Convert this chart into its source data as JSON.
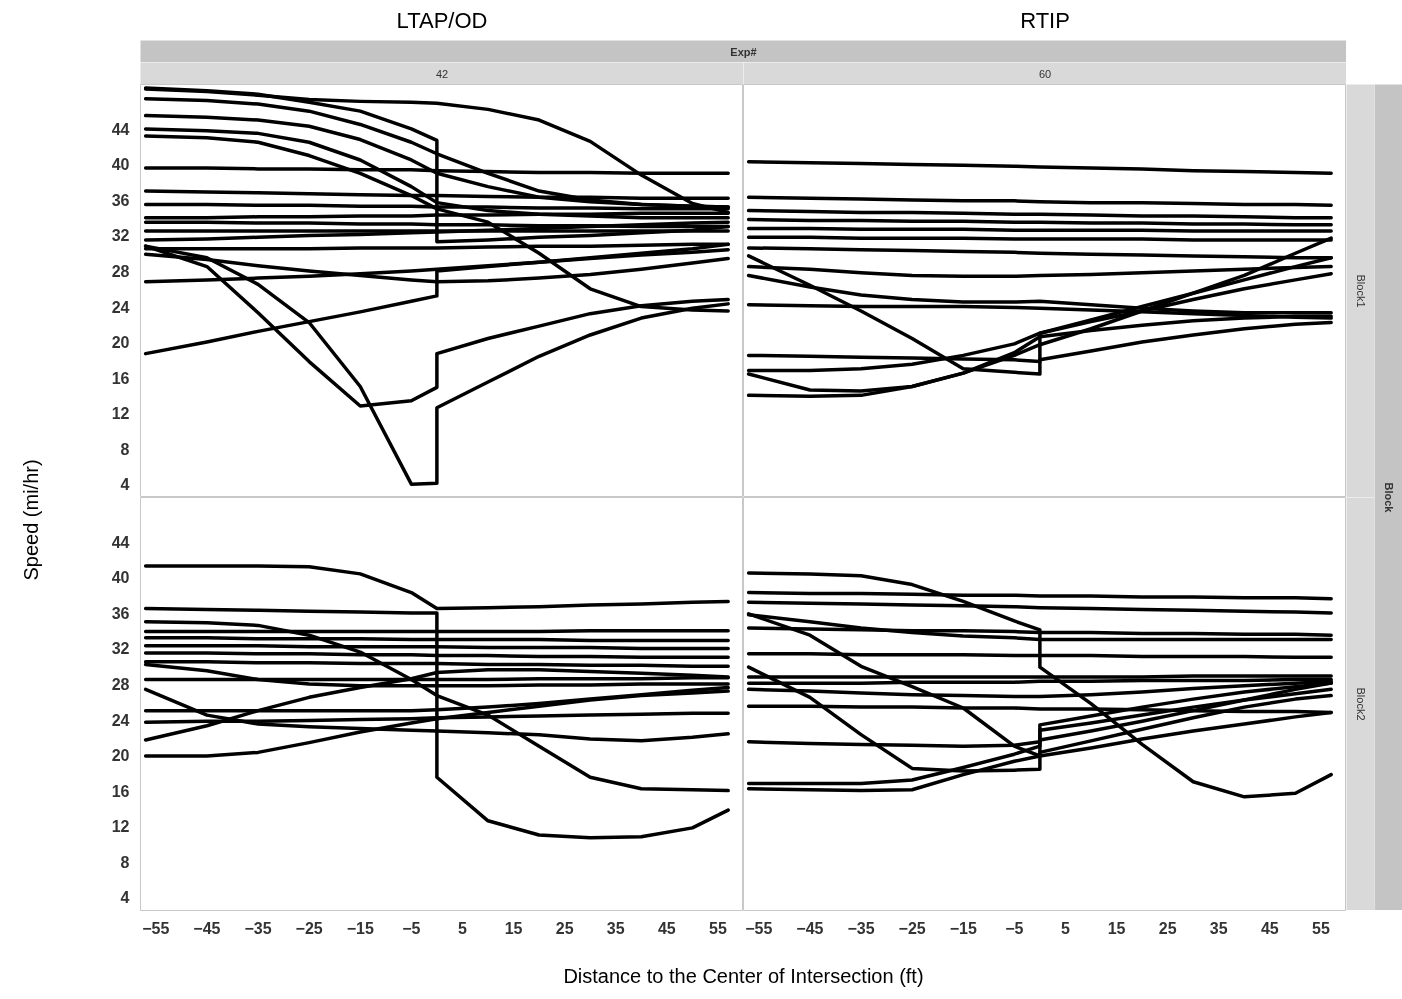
{
  "chart_data": [
    {
      "type": "line",
      "title": "LTAP/OD",
      "subtitle": "42",
      "ylabel": "Speed (mi/hr)",
      "annotations": [
        "Exp#"
      ],
      "tick_labels": "y",
      "xlim": [
        -58,
        60
      ],
      "ylim": [
        2.5,
        49
      ],
      "xticks": [
        -55,
        -45,
        -35,
        -25,
        -15,
        -5,
        5,
        15,
        25,
        35,
        45,
        55
      ],
      "yticks": [
        4,
        8,
        12,
        16,
        20,
        24,
        28,
        32,
        36,
        40,
        44
      ],
      "x": [
        -57,
        -45,
        -35,
        -25,
        -15,
        -5,
        0,
        0,
        10,
        20,
        30,
        40,
        50,
        57
      ],
      "series": [
        {
          "color": "#000000",
          "values": [
            48.5,
            48.2,
            47.8,
            47.3,
            47.1,
            47,
            46.9,
            46.9,
            46.2,
            45,
            42.6,
            38.8,
            35.6,
            34.6
          ]
        },
        {
          "color": "#000000",
          "values": [
            48.6,
            48.3,
            47.9,
            47,
            46,
            44,
            42.7,
            31.3,
            31.5,
            31.8,
            32,
            32.3,
            32.6,
            33
          ]
        },
        {
          "color": "#000000",
          "values": [
            47.4,
            47.2,
            46.8,
            46,
            44.5,
            42.5,
            41.2,
            41.2,
            39,
            37,
            36,
            35.5,
            35.3,
            35.2
          ]
        },
        {
          "color": "#000000",
          "values": [
            45.5,
            45.3,
            45,
            44.3,
            42.8,
            40.5,
            39,
            39,
            37.5,
            36.3,
            35.8,
            35.5,
            35.3,
            35.2
          ]
        },
        {
          "color": "#000000",
          "values": [
            44,
            43.8,
            43.5,
            42.5,
            40.5,
            37.5,
            35.7,
            35.7,
            34.8,
            34.4,
            34.2,
            34,
            34,
            34
          ]
        },
        {
          "color": "#000000",
          "values": [
            43.2,
            43,
            42.5,
            41,
            39,
            36.5,
            35,
            35,
            33.5,
            30,
            26,
            24,
            23.6,
            23.5
          ]
        },
        {
          "color": "#000000",
          "values": [
            39.6,
            39.6,
            39.5,
            39.5,
            39.4,
            39.4,
            39.3,
            39.3,
            39.2,
            39.1,
            39.1,
            39,
            39,
            39
          ]
        },
        {
          "color": "#000000",
          "values": [
            37,
            36.9,
            36.8,
            36.7,
            36.6,
            36.5,
            36.5,
            36.5,
            36.4,
            36.3,
            36.3,
            36.2,
            36.2,
            36.2
          ]
        },
        {
          "color": "#000000",
          "values": [
            35.5,
            35.5,
            35.4,
            35.4,
            35.3,
            35.3,
            35.2,
            35.2,
            35.2,
            35.1,
            35.1,
            35,
            35,
            35
          ]
        },
        {
          "color": "#000000",
          "values": [
            34,
            34,
            34.1,
            34.1,
            34.2,
            34.2,
            34.3,
            34.3,
            34.3,
            34.4,
            34.4,
            34.5,
            34.5,
            34.5
          ]
        },
        {
          "color": "#000000",
          "values": [
            33.5,
            33.5,
            33.4,
            33.4,
            33.3,
            33.3,
            33.2,
            33.2,
            33.2,
            33.1,
            33.1,
            33,
            33,
            33
          ]
        },
        {
          "color": "#000000",
          "values": [
            32.5,
            32.5,
            32.5,
            32.5,
            32.5,
            32.5,
            32.5,
            32.5,
            32.5,
            32.5,
            32.5,
            32.5,
            32.5,
            32.5
          ]
        },
        {
          "color": "#000000",
          "values": [
            31.5,
            31.6,
            31.8,
            32,
            32.1,
            32.3,
            32.4,
            32.4,
            32.6,
            32.8,
            33,
            33.2,
            33.4,
            33.5
          ]
        },
        {
          "color": "#000000",
          "values": [
            30.5,
            30.5,
            30.5,
            30.5,
            30.6,
            30.6,
            30.6,
            30.6,
            30.7,
            30.8,
            30.8,
            30.9,
            31,
            31
          ]
        },
        {
          "color": "#000000",
          "values": [
            29.9,
            29.3,
            28.6,
            28,
            27.5,
            27,
            26.8,
            26.8,
            26.9,
            27.2,
            27.6,
            28.2,
            28.9,
            29.4
          ]
        },
        {
          "color": "#000000",
          "values": [
            26.8,
            27,
            27.2,
            27.4,
            27.7,
            28,
            28.2,
            28.2,
            28.6,
            29,
            29.4,
            29.8,
            30.1,
            30.4
          ]
        },
        {
          "color": "#000000",
          "values": [
            18.7,
            20,
            21.2,
            22.3,
            23.4,
            24.6,
            25.2,
            28,
            28.5,
            29,
            29.5,
            30,
            30.5,
            31
          ]
        },
        {
          "color": "#000000",
          "values": [
            30.8,
            28.5,
            23.3,
            17.8,
            12.8,
            13.4,
            14.9,
            18.7,
            20.4,
            21.8,
            23.2,
            24.1,
            24.6,
            24.8
          ]
        },
        {
          "color": "#000000",
          "values": [
            30.8,
            29.5,
            26.5,
            22.2,
            15,
            4,
            4.1,
            12.6,
            15.5,
            18.4,
            20.8,
            22.7,
            23.8,
            24.3
          ]
        }
      ]
    },
    {
      "type": "line",
      "title": "RTIP",
      "subtitle": "60",
      "annotations": [
        "Block1",
        "Block"
      ],
      "tick_labels": false,
      "xlim": [
        -58,
        60
      ],
      "ylim": [
        2.5,
        49
      ],
      "xticks": [
        -55,
        -45,
        -35,
        -25,
        -15,
        -5,
        5,
        15,
        25,
        35,
        45,
        55
      ],
      "yticks": [
        4,
        8,
        12,
        16,
        20,
        24,
        28,
        32,
        36,
        40,
        44
      ],
      "x": [
        -57,
        -45,
        -35,
        -25,
        -15,
        -5,
        0,
        0,
        10,
        20,
        30,
        40,
        50,
        57
      ],
      "series": [
        {
          "color": "#000000",
          "values": [
            40.3,
            40.2,
            40.1,
            40,
            39.9,
            39.8,
            39.7,
            39.7,
            39.6,
            39.5,
            39.3,
            39.2,
            39.1,
            39
          ]
        },
        {
          "color": "#000000",
          "values": [
            36.3,
            36.2,
            36.1,
            36,
            35.9,
            35.9,
            35.8,
            35.8,
            35.7,
            35.7,
            35.6,
            35.5,
            35.5,
            35.4
          ]
        },
        {
          "color": "#000000",
          "values": [
            34.8,
            34.7,
            34.6,
            34.6,
            34.5,
            34.4,
            34.4,
            34.4,
            34.3,
            34.2,
            34.2,
            34.1,
            34,
            34
          ]
        },
        {
          "color": "#000000",
          "values": [
            33.8,
            33.7,
            33.7,
            33.6,
            33.6,
            33.5,
            33.5,
            33.5,
            33.4,
            33.4,
            33.3,
            33.3,
            33.2,
            33.2
          ]
        },
        {
          "color": "#000000",
          "values": [
            32.8,
            32.8,
            32.7,
            32.7,
            32.7,
            32.6,
            32.6,
            32.6,
            32.6,
            32.6,
            32.5,
            32.5,
            32.5,
            32.5
          ]
        },
        {
          "color": "#000000",
          "values": [
            31.8,
            31.8,
            31.7,
            31.7,
            31.7,
            31.6,
            31.6,
            31.6,
            31.6,
            31.6,
            31.5,
            31.5,
            31.5,
            31.5
          ]
        },
        {
          "color": "#000000",
          "values": [
            30.6,
            30.5,
            30.4,
            30.3,
            30.2,
            30.1,
            30,
            30,
            29.9,
            29.8,
            29.7,
            29.6,
            29.5,
            29.5
          ]
        },
        {
          "color": "#000000",
          "values": [
            29.7,
            26.4,
            23.5,
            20.4,
            17,
            16.6,
            16.4,
            18,
            19,
            20,
            20.8,
            21.5,
            22,
            22.2
          ]
        },
        {
          "color": "#000000",
          "values": [
            28.5,
            28.2,
            27.8,
            27.5,
            27.4,
            27.4,
            27.5,
            27.5,
            27.6,
            27.8,
            28,
            28.2,
            28.4,
            28.5
          ]
        },
        {
          "color": "#000000",
          "values": [
            27.5,
            26.2,
            25.3,
            24.8,
            24.5,
            24.5,
            24.6,
            24.6,
            24.2,
            23.8,
            23.5,
            23.3,
            23.3,
            23.3
          ]
        },
        {
          "color": "#000000",
          "values": [
            24.2,
            24.1,
            24,
            24,
            24,
            23.9,
            23.8,
            23.8,
            23.6,
            23.4,
            23.2,
            23,
            22.8,
            22.7
          ]
        },
        {
          "color": "#000000",
          "values": [
            18.5,
            18.4,
            18.3,
            18.2,
            18.1,
            18,
            17.8,
            21,
            22.3,
            23.5,
            24.8,
            26,
            27,
            27.7
          ]
        },
        {
          "color": "#000000",
          "values": [
            16.8,
            16.8,
            17,
            17.5,
            18.5,
            19.8,
            21,
            21,
            22.5,
            24,
            25.5,
            27,
            28.5,
            29.5
          ]
        },
        {
          "color": "#000000",
          "values": [
            16.4,
            14.6,
            14.5,
            15,
            16.5,
            18.5,
            19.7,
            19.7,
            21.5,
            23.5,
            25.5,
            27.5,
            30,
            31.7
          ]
        },
        {
          "color": "#000000",
          "values": [
            14,
            13.9,
            14,
            15,
            16.5,
            18.8,
            20.6,
            20.6,
            21.3,
            21.9,
            22.4,
            22.7,
            22.9,
            22.9
          ]
        }
      ]
    },
    {
      "type": "line",
      "xlabel": "Distance to the Center of Intersection (ft)",
      "xlim": [
        -58,
        60
      ],
      "ylim": [
        2.5,
        49
      ],
      "xticks": [
        -55,
        -45,
        -35,
        -25,
        -15,
        -5,
        5,
        15,
        25,
        35,
        45,
        55
      ],
      "yticks": [
        4,
        8,
        12,
        16,
        20,
        24,
        28,
        32,
        36,
        40,
        44
      ],
      "x": [
        -57,
        -45,
        -35,
        -25,
        -15,
        -5,
        0,
        0,
        10,
        20,
        30,
        40,
        50,
        57
      ],
      "series": [
        {
          "color": "#000000",
          "values": [
            41.3,
            41.3,
            41.3,
            41.2,
            40.4,
            38.3,
            36.5,
            36.5,
            36.6,
            36.7,
            36.9,
            37,
            37.2,
            37.3
          ]
        },
        {
          "color": "#000000",
          "values": [
            36.5,
            36.4,
            36.3,
            36.2,
            36.1,
            36,
            36,
            17.5,
            12.6,
            11,
            10.7,
            10.8,
            11.8,
            13.8
          ]
        },
        {
          "color": "#000000",
          "values": [
            35,
            34.9,
            34.6,
            33.5,
            31.6,
            28.5,
            26.7,
            26.7,
            24.5,
            21,
            17.5,
            16.2,
            16.1,
            16
          ]
        },
        {
          "color": "#000000",
          "values": [
            33.9,
            33.9,
            33.9,
            33.9,
            33.9,
            33.9,
            33.9,
            33.9,
            33.9,
            33.9,
            34,
            34,
            34,
            34
          ]
        },
        {
          "color": "#000000",
          "values": [
            33.2,
            33.2,
            33.1,
            33.1,
            33.1,
            33,
            33,
            33,
            33,
            33,
            32.9,
            32.9,
            32.9,
            32.9
          ]
        },
        {
          "color": "#000000",
          "values": [
            32.3,
            32.3,
            32.3,
            32.2,
            32.2,
            32.2,
            32.2,
            32.2,
            32.1,
            32.1,
            32.1,
            32,
            32,
            32
          ]
        },
        {
          "color": "#000000",
          "values": [
            31.5,
            31.5,
            31.4,
            31.4,
            31.3,
            31.3,
            31.2,
            31.2,
            31.2,
            31.1,
            31.1,
            31,
            31,
            31
          ]
        },
        {
          "color": "#000000",
          "values": [
            30.5,
            30.5,
            30.4,
            30.4,
            30.3,
            30.3,
            30.3,
            30.3,
            30.2,
            30.2,
            30.1,
            30.1,
            30,
            30
          ]
        },
        {
          "color": "#000000",
          "values": [
            28.5,
            28.5,
            28.5,
            28.5,
            28.5,
            28.5,
            28.5,
            28.5,
            28.5,
            28.6,
            28.6,
            28.6,
            28.7,
            28.7
          ]
        },
        {
          "color": "#000000",
          "values": [
            27.4,
            24.5,
            23.5,
            23.2,
            23,
            22.8,
            22.7,
            22.7,
            22.5,
            22.3,
            21.8,
            21.6,
            22,
            22.4
          ]
        },
        {
          "color": "#000000",
          "values": [
            25,
            25,
            25,
            25,
            25,
            25,
            25.1,
            25.1,
            25.4,
            25.8,
            26.3,
            26.8,
            27.3,
            27.6
          ]
        },
        {
          "color": "#000000",
          "values": [
            23.7,
            23.8,
            23.8,
            23.9,
            24,
            24.1,
            24.2,
            24.2,
            24.3,
            24.4,
            24.5,
            24.6,
            24.7,
            24.7
          ]
        },
        {
          "color": "#000000",
          "values": [
            21.7,
            23.3,
            25,
            26.5,
            27.6,
            28.6,
            29.3,
            29.3,
            29.6,
            29.6,
            29.4,
            29.2,
            29,
            28.8
          ]
        },
        {
          "color": "#000000",
          "values": [
            19.9,
            19.9,
            20.3,
            21.4,
            22.6,
            23.6,
            24.1,
            24.1,
            24.8,
            25.5,
            26.2,
            26.7,
            27,
            27.2
          ]
        },
        {
          "color": "#000000",
          "values": [
            30.2,
            29.5,
            28.5,
            28,
            27.8,
            27.8,
            27.8,
            27.8,
            27.8,
            27.9,
            27.9,
            28,
            28,
            28
          ]
        }
      ]
    },
    {
      "type": "line",
      "annotations": [
        "Block2"
      ],
      "tick_labels": "x",
      "xlim": [
        -58,
        60
      ],
      "ylim": [
        2.5,
        49
      ],
      "xticks": [
        -55,
        -45,
        -35,
        -25,
        -15,
        -5,
        5,
        15,
        25,
        35,
        45,
        55
      ],
      "yticks": [
        4,
        8,
        12,
        16,
        20,
        24,
        28,
        32,
        36,
        40,
        44
      ],
      "x": [
        -57,
        -45,
        -35,
        -25,
        -15,
        -5,
        0,
        0,
        10,
        20,
        30,
        40,
        50,
        57
      ],
      "series": [
        {
          "color": "#000000",
          "values": [
            40.5,
            40.4,
            40.2,
            39.2,
            37.3,
            35.1,
            34.1,
            29.9,
            25.8,
            21.2,
            17,
            15.3,
            15.7,
            17.8
          ]
        },
        {
          "color": "#000000",
          "values": [
            38.3,
            38.2,
            38.2,
            38.1,
            38,
            38,
            37.9,
            37.9,
            37.9,
            37.8,
            37.8,
            37.7,
            37.7,
            37.6
          ]
        },
        {
          "color": "#000000",
          "values": [
            37.2,
            37.1,
            37,
            36.9,
            36.8,
            36.7,
            36.6,
            36.6,
            36.5,
            36.4,
            36.3,
            36.2,
            36.1,
            36
          ]
        },
        {
          "color": "#000000",
          "values": [
            35.8,
            35,
            34.3,
            33.8,
            33.4,
            33.2,
            33,
            33,
            33,
            33,
            33,
            33,
            33,
            33
          ]
        },
        {
          "color": "#000000",
          "values": [
            35.9,
            33.5,
            30,
            27.7,
            25.3,
            21,
            19.9,
            23.4,
            24.4,
            25.4,
            26.3,
            27.1,
            27.7,
            28.1
          ]
        },
        {
          "color": "#000000",
          "values": [
            29.9,
            26.5,
            22.3,
            18.5,
            18.2,
            18.3,
            18.4,
            20.3,
            21.6,
            22.9,
            24.2,
            25.4,
            26.3,
            26.7
          ]
        },
        {
          "color": "#000000",
          "values": [
            34.3,
            34.2,
            34.1,
            34,
            34,
            33.9,
            33.8,
            33.8,
            33.8,
            33.7,
            33.7,
            33.6,
            33.6,
            33.5
          ]
        },
        {
          "color": "#000000",
          "values": [
            31.4,
            31.4,
            31.3,
            31.3,
            31.3,
            31.2,
            31.2,
            31.2,
            31.2,
            31.1,
            31.1,
            31.1,
            31,
            31
          ]
        },
        {
          "color": "#000000",
          "values": [
            28.8,
            28.8,
            28.8,
            28.8,
            28.8,
            28.8,
            28.8,
            28.8,
            28.8,
            28.8,
            28.9,
            28.9,
            28.9,
            28.9
          ]
        },
        {
          "color": "#000000",
          "values": [
            28.1,
            28.1,
            28.1,
            28.2,
            28.2,
            28.2,
            28.3,
            28.3,
            28.3,
            28.4,
            28.4,
            28.4,
            28.5,
            28.5
          ]
        },
        {
          "color": "#000000",
          "values": [
            27.4,
            27.2,
            27,
            26.8,
            26.7,
            26.6,
            26.6,
            26.6,
            26.8,
            27.1,
            27.5,
            27.8,
            28.1,
            28.3
          ]
        },
        {
          "color": "#000000",
          "values": [
            25.5,
            25.5,
            25.4,
            25.4,
            25.3,
            25.3,
            25.2,
            25.2,
            25.2,
            25.1,
            25,
            24.9,
            24.9,
            24.8
          ]
        },
        {
          "color": "#000000",
          "values": [
            21.5,
            21.3,
            21.2,
            21.1,
            21,
            21.1,
            21.5,
            21.7,
            22.7,
            23.8,
            25,
            26.2,
            27.4,
            28.1
          ]
        },
        {
          "color": "#000000",
          "values": [
            16.8,
            16.8,
            16.8,
            17.2,
            18.6,
            20.1,
            21,
            22.8,
            23.6,
            24.5,
            25.4,
            26.2,
            26.9,
            27.4
          ]
        },
        {
          "color": "#000000",
          "values": [
            16.2,
            16.1,
            16,
            16.1,
            17.8,
            19.3,
            19.9,
            19.9,
            20.8,
            21.8,
            22.7,
            23.5,
            24.3,
            24.8
          ]
        }
      ]
    }
  ]
}
